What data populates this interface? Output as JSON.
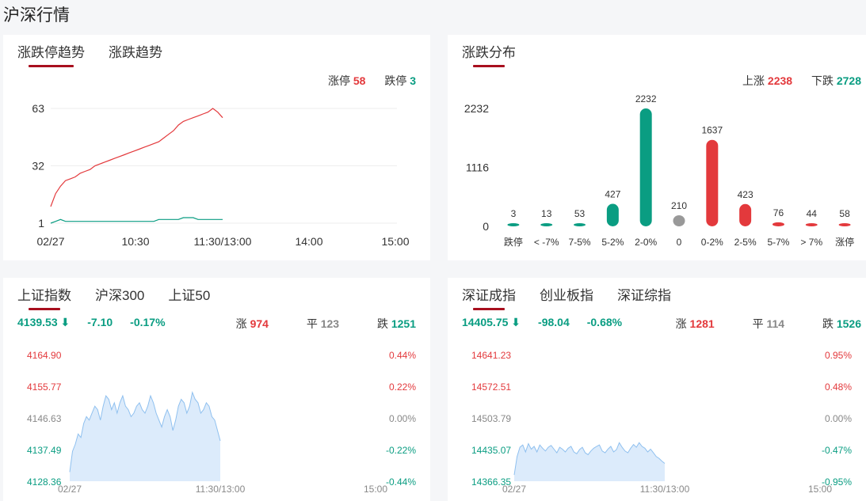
{
  "page_title": "沪深行情",
  "limit_card": {
    "tabs": [
      "涨跌停趋势",
      "涨跌趋势"
    ],
    "zt_label": "涨停",
    "zt_value": "58",
    "dt_label": "跌停",
    "dt_value": "3",
    "chart_data": {
      "type": "line",
      "yticks": [
        "63",
        "32",
        "1"
      ],
      "xticks": [
        "02/27",
        "10:30",
        "11:30/13:00",
        "14:00",
        "15:00"
      ],
      "ylim": [
        1,
        63
      ],
      "series": [
        {
          "name": "涨停",
          "color": "#e3393c",
          "values": [
            10,
            17,
            21,
            24,
            25,
            26,
            28,
            29,
            30,
            32,
            33,
            34,
            35,
            36,
            37,
            38,
            39,
            40,
            41,
            42,
            43,
            44,
            45,
            47,
            49,
            51,
            54,
            56,
            57,
            58,
            59,
            60,
            61,
            63,
            61,
            58
          ]
        },
        {
          "name": "跌停",
          "color": "#0a9d82",
          "values": [
            1,
            2,
            3,
            2,
            2,
            2,
            2,
            2,
            2,
            2,
            2,
            2,
            2,
            2,
            2,
            2,
            2,
            2,
            2,
            2,
            2,
            2,
            3,
            3,
            3,
            3,
            3,
            4,
            4,
            4,
            3,
            3,
            3,
            3,
            3,
            3
          ]
        }
      ]
    }
  },
  "dist_card": {
    "tabs": [
      "涨跌分布"
    ],
    "up_label": "上涨",
    "up_value": "2238",
    "down_label": "下跌",
    "down_value": "2728",
    "chart_data": {
      "type": "bar",
      "yticks": [
        "2232",
        "1116",
        "0"
      ],
      "ylim": [
        0,
        2232
      ],
      "categories": [
        "跌停",
        "< -7%",
        "7-5%",
        "5-2%",
        "2-0%",
        "0",
        "0-2%",
        "2-5%",
        "5-7%",
        "> 7%",
        "涨停"
      ],
      "values": [
        3,
        13,
        53,
        427,
        2232,
        210,
        1637,
        423,
        76,
        44,
        58
      ],
      "labels": [
        "3",
        "13",
        "53",
        "427",
        "2232",
        "210",
        "1637",
        "423",
        "76",
        "44",
        "58"
      ],
      "colors": [
        "#0a9d82",
        "#0a9d82",
        "#0a9d82",
        "#0a9d82",
        "#0a9d82",
        "#999999",
        "#e3393c",
        "#e3393c",
        "#e3393c",
        "#e3393c",
        "#e3393c"
      ]
    }
  },
  "sh_card": {
    "tabs": [
      "上证指数",
      "沪深300",
      "上证50"
    ],
    "price": "4139.53",
    "change": "-7.10",
    "pct": "-0.17%",
    "up_label": "涨",
    "up_value": "974",
    "flat_label": "平",
    "flat_value": "123",
    "down_label": "跌",
    "down_value": "1251",
    "chart_data": {
      "type": "area",
      "yticks_left": [
        "4164.90",
        "4155.77",
        "4146.63",
        "4137.49",
        "4128.36"
      ],
      "yticks_right": [
        "0.44%",
        "0.22%",
        "0.00%",
        "-0.22%",
        "-0.44%"
      ],
      "xticks": [
        "02/27",
        "11:30/13:00",
        "15:00"
      ],
      "ylim": [
        4128.36,
        4164.9
      ],
      "values": [
        4131,
        4137,
        4139,
        4142,
        4141,
        4145,
        4147,
        4146,
        4148,
        4150,
        4149,
        4146,
        4150,
        4153,
        4152,
        4149,
        4151,
        4148,
        4151,
        4153,
        4150,
        4149,
        4147,
        4148,
        4150,
        4151,
        4149,
        4148,
        4150,
        4153,
        4151,
        4148,
        4146,
        4144,
        4147,
        4149,
        4147,
        4143,
        4146,
        4150,
        4152,
        4151,
        4148,
        4150,
        4154,
        4152,
        4151,
        4148,
        4149,
        4151,
        4150,
        4147,
        4146,
        4143,
        4140
      ]
    }
  },
  "sz_card": {
    "tabs": [
      "深证成指",
      "创业板指",
      "深证综指"
    ],
    "price": "14405.75",
    "change": "-98.04",
    "pct": "-0.68%",
    "up_label": "涨",
    "up_value": "1281",
    "flat_label": "平",
    "flat_value": "114",
    "down_label": "跌",
    "down_value": "1526",
    "chart_data": {
      "type": "area",
      "yticks_left": [
        "14641.23",
        "14572.51",
        "14503.79",
        "14435.07",
        "14366.35"
      ],
      "yticks_right": [
        "0.95%",
        "0.48%",
        "0.00%",
        "-0.47%",
        "-0.95%"
      ],
      "xticks": [
        "02/27",
        "11:30/13:00",
        "15:00"
      ],
      "ylim": [
        14366.35,
        14641.23
      ],
      "values": [
        14380,
        14420,
        14440,
        14445,
        14430,
        14448,
        14436,
        14442,
        14430,
        14445,
        14438,
        14432,
        14440,
        14444,
        14436,
        14428,
        14440,
        14436,
        14430,
        14438,
        14442,
        14430,
        14426,
        14435,
        14440,
        14428,
        14424,
        14432,
        14438,
        14442,
        14445,
        14432,
        14428,
        14436,
        14442,
        14430,
        14435,
        14450,
        14440,
        14432,
        14428,
        14438,
        14446,
        14440,
        14450,
        14442,
        14438,
        14430,
        14436,
        14428,
        14420,
        14416,
        14410,
        14405
      ]
    }
  }
}
